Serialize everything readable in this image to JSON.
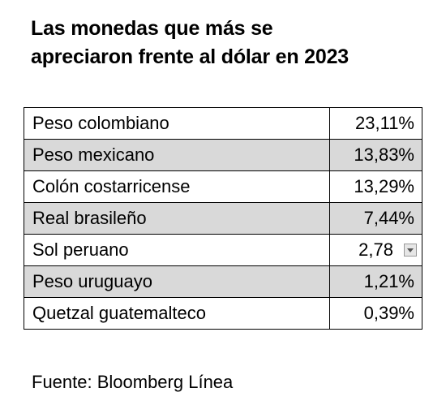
{
  "title": {
    "line1": "Las monedas que más se",
    "line2": "apreciaron frente al dólar en 2023"
  },
  "source": "Fuente: Bloomberg Línea",
  "colors": {
    "shaded_row": "#d9d9d9",
    "border": "#000000"
  },
  "chart_data": {
    "type": "table",
    "title": "Las monedas que más se apreciaron frente al dólar en 2023",
    "rows": [
      {
        "currency": "Peso colombiano",
        "value": "23,11%",
        "shaded": false
      },
      {
        "currency": "Peso mexicano",
        "value": "13,83%",
        "shaded": true
      },
      {
        "currency": "Colón costarricense",
        "value": "13,29%",
        "shaded": false
      },
      {
        "currency": "Real brasileño",
        "value": "7,44%",
        "shaded": true
      },
      {
        "currency": "Sol peruano",
        "value": "2,78",
        "shaded": false,
        "dropdown_icon": "chevron-down-icon"
      },
      {
        "currency": "Peso uruguayo",
        "value": "1,21%",
        "shaded": true
      },
      {
        "currency": "Quetzal guatemalteco",
        "value": "0,39%",
        "shaded": false
      }
    ],
    "values_numeric": [
      23.11,
      13.83,
      13.29,
      7.44,
      2.78,
      1.21,
      0.39
    ],
    "source": "Fuente: Bloomberg Línea"
  }
}
